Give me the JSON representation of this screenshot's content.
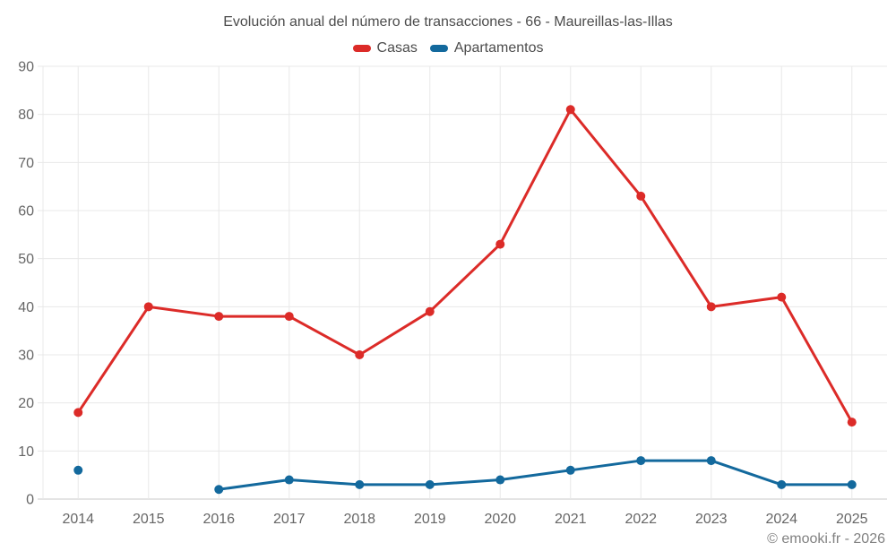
{
  "title": "Evolución anual del número de transacciones - 66 - Maureillas-las-Illas",
  "legend": {
    "items": [
      {
        "label": "Casas",
        "color": "#dc2b28"
      },
      {
        "label": "Apartamentos",
        "color": "#13699d"
      }
    ]
  },
  "copyright": "© emooki.fr - 2026",
  "chart_data": {
    "type": "line",
    "title": "Evolución anual del número de transacciones - 66 - Maureillas-las-Illas",
    "categories": [
      "2014",
      "2015",
      "2016",
      "2017",
      "2018",
      "2019",
      "2020",
      "2021",
      "2022",
      "2023",
      "2024",
      "2025"
    ],
    "series": [
      {
        "name": "Casas",
        "color": "#dc2b28",
        "values": [
          18,
          40,
          38,
          38,
          30,
          39,
          53,
          81,
          63,
          40,
          42,
          16
        ]
      },
      {
        "name": "Apartamentos",
        "color": "#13699d",
        "values": [
          6,
          null,
          2,
          4,
          3,
          3,
          4,
          6,
          8,
          8,
          3,
          3
        ]
      }
    ],
    "xlabel": "",
    "ylabel": "",
    "ylim": [
      0,
      90
    ],
    "yticks": [
      0,
      10,
      20,
      30,
      40,
      50,
      60,
      70,
      80,
      90
    ],
    "grid": true,
    "legend_position": "top",
    "grid_color": "#e8e8e8",
    "axis_color": "#c8c8c8",
    "tick_color": "#666666"
  }
}
